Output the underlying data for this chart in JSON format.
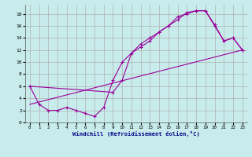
{
  "xlabel": "Windchill (Refroidissement éolien,°C)",
  "background_color": "#c8ecec",
  "grid_color": "#b0b0b0",
  "line_color": "#990099",
  "xlim": [
    -0.5,
    23.5
  ],
  "ylim": [
    0,
    19.5
  ],
  "xticks": [
    0,
    1,
    2,
    3,
    4,
    5,
    6,
    7,
    8,
    9,
    10,
    11,
    12,
    13,
    14,
    15,
    16,
    17,
    18,
    19,
    20,
    21,
    22,
    23
  ],
  "yticks": [
    0,
    2,
    4,
    6,
    8,
    10,
    12,
    14,
    16,
    18
  ],
  "line1_x": [
    0,
    1,
    2,
    3,
    4,
    5,
    6,
    7,
    8,
    9,
    10,
    11,
    12,
    13,
    14,
    15,
    16,
    17,
    18,
    19,
    20,
    21,
    22,
    23
  ],
  "line1_y": [
    6,
    3,
    2,
    2,
    2.5,
    2,
    1.5,
    1,
    2.5,
    7,
    10,
    11.5,
    13,
    14,
    15,
    16,
    17.5,
    18,
    18.5,
    18.5,
    16,
    13.5,
    14,
    12
  ],
  "line2_x": [
    0,
    9,
    10,
    11,
    12,
    13,
    14,
    15,
    16,
    17,
    18,
    19,
    20,
    21,
    22,
    23
  ],
  "line2_y": [
    6,
    5,
    7,
    11.5,
    12.5,
    13.5,
    15,
    16,
    17,
    18.2,
    18.5,
    18.5,
    16.2,
    13.5,
    14,
    12
  ],
  "line3_x": [
    0,
    23
  ],
  "line3_y": [
    3,
    12
  ]
}
